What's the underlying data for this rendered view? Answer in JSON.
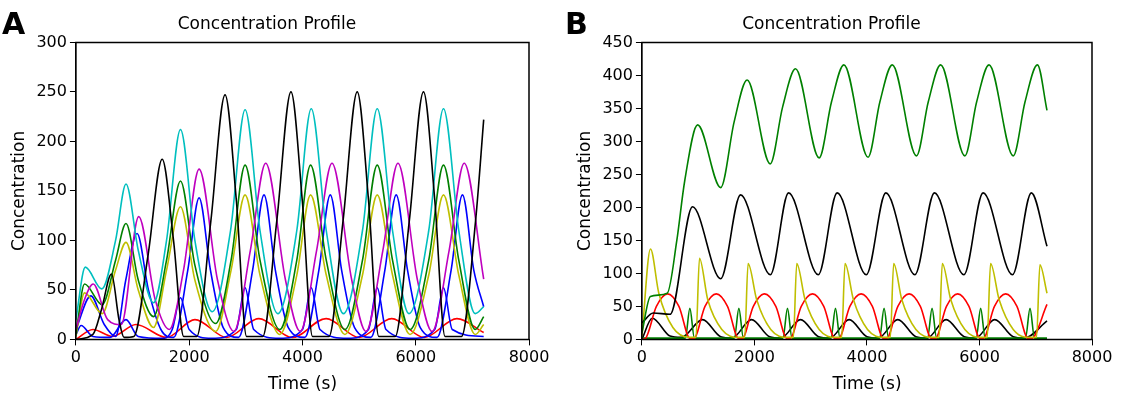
{
  "chart_data": [
    {
      "type": "line",
      "title": "Concentration Profile",
      "xlabel": "Time (s)",
      "ylabel": "Concentration",
      "annotations": [
        "A"
      ],
      "xlim": [
        0,
        8000
      ],
      "xticks": [
        0,
        2000,
        4000,
        6000,
        8000
      ],
      "ylim": [
        0,
        300
      ],
      "yticks": [
        0,
        50,
        100,
        150,
        200,
        250,
        300
      ],
      "series": [
        {
          "color": "#000000",
          "x": [
            0,
            300,
            450,
            628,
            760,
            850,
            1023,
            1273,
            1523,
            1723,
            1903,
            2133,
            2383,
            2633,
            2833,
            3013,
            3297,
            3547,
            3797,
            3997,
            4177,
            4467,
            4717,
            4967,
            5167,
            5347,
            5637,
            5887,
            6137,
            6337,
            6517,
            6807,
            7057,
            7200
          ],
          "values": [
            0,
            5,
            30,
            66,
            20,
            2,
            3,
            85,
            182,
            100,
            3,
            3,
            120,
            247,
            140,
            3,
            3,
            120,
            250,
            140,
            3,
            3,
            120,
            250,
            140,
            3,
            3,
            120,
            250,
            140,
            3,
            3,
            120,
            222
          ]
        },
        {
          "color": "#00bfbf",
          "x": [
            0,
            165,
            457,
            700,
            884,
            1100,
            1371,
            1600,
            1846,
            2100,
            2407,
            2730,
            2987,
            3250,
            3565,
            3900,
            4155,
            4420,
            4723,
            5060,
            5320,
            5590,
            5880,
            6230,
            6490,
            6760,
            7050,
            7200
          ],
          "values": [
            20,
            73,
            51,
            100,
            157,
            90,
            37,
            100,
            212,
            100,
            28,
            110,
            232,
            110,
            26,
            110,
            233,
            110,
            26,
            110,
            233,
            110,
            26,
            110,
            233,
            110,
            26,
            33
          ]
        },
        {
          "color": "#bf00bf",
          "x": [
            0,
            150,
            305,
            560,
            800,
            1109,
            1400,
            1650,
            1900,
            2175,
            2500,
            2790,
            3080,
            3351,
            3700,
            3960,
            4250,
            4521,
            4870,
            5120,
            5420,
            5686,
            6030,
            6290,
            6590,
            6856,
            7200
          ],
          "values": [
            10,
            40,
            56,
            20,
            15,
            124,
            40,
            10,
            70,
            172,
            60,
            8,
            90,
            178,
            60,
            8,
            90,
            178,
            60,
            8,
            90,
            178,
            60,
            8,
            90,
            178,
            61
          ]
        },
        {
          "color": "#008000",
          "x": [
            0,
            152,
            463,
            700,
            884,
            1100,
            1371,
            1600,
            1846,
            2100,
            2468,
            2740,
            2987,
            3250,
            3600,
            3900,
            4143,
            4420,
            4750,
            5060,
            5320,
            5590,
            5900,
            6230,
            6490,
            6760,
            7050,
            7200
          ],
          "values": [
            5,
            56,
            35,
            80,
            117,
            60,
            23,
            80,
            160,
            75,
            16,
            80,
            176,
            80,
            10,
            80,
            176,
            80,
            10,
            80,
            176,
            80,
            10,
            80,
            176,
            80,
            10,
            23
          ]
        },
        {
          "color": "#bfbf00",
          "x": [
            0,
            152,
            463,
            700,
            884,
            1100,
            1371,
            1600,
            1846,
            2100,
            2468,
            2740,
            2987,
            3250,
            3600,
            3900,
            4143,
            4420,
            4750,
            5060,
            5320,
            5590,
            5900,
            6230,
            6490,
            6760,
            7050,
            7200
          ],
          "values": [
            3,
            47,
            26,
            70,
            98,
            50,
            12,
            70,
            134,
            60,
            8,
            70,
            146,
            65,
            5,
            65,
            146,
            65,
            5,
            65,
            146,
            65,
            5,
            65,
            146,
            65,
            5,
            15
          ]
        },
        {
          "color": "#0000ff",
          "x": [
            0,
            262,
            500,
            700,
            880,
            1079,
            1280,
            1500,
            1725,
            1975,
            2175,
            2375,
            2600,
            2870,
            3120,
            3321,
            3521,
            3750,
            4040,
            4290,
            4491,
            4691,
            4920,
            5205,
            5455,
            5655,
            5855,
            6080,
            6375,
            6625,
            6825,
            7025,
            7200
          ],
          "values": [
            10,
            44,
            15,
            3,
            60,
            107,
            50,
            10,
            2,
            70,
            143,
            70,
            12,
            2,
            70,
            146,
            70,
            12,
            2,
            70,
            146,
            70,
            12,
            2,
            70,
            146,
            70,
            12,
            2,
            70,
            146,
            70,
            33
          ]
        },
        {
          "color": "#0000ff",
          "x": [
            0,
            91,
            300,
            600,
            884,
            1100,
            1550,
            1700,
            1846,
            2000,
            2400,
            2830,
            2987,
            3140,
            3600,
            4000,
            4155,
            4310,
            4800,
            5165,
            5320,
            5475,
            5950,
            6335,
            6490,
            6645,
            7200
          ],
          "values": [
            5,
            14,
            3,
            2,
            20,
            3,
            1,
            10,
            42,
            10,
            1,
            10,
            52,
            10,
            1,
            10,
            52,
            10,
            1,
            10,
            52,
            10,
            1,
            10,
            52,
            10,
            3
          ]
        },
        {
          "color": "#ff0000",
          "x": [
            0,
            300,
            650,
            1060,
            1600,
            2102,
            2660,
            3230,
            3820,
            4418,
            5000,
            5576,
            6150,
            6728,
            7200
          ],
          "values": [
            0,
            10,
            3,
            15,
            2,
            20,
            2,
            21,
            2,
            21,
            2,
            21,
            2,
            21,
            7
          ]
        }
      ]
    },
    {
      "type": "line",
      "title": "Concentration Profile",
      "xlabel": "Time (s)",
      "ylabel": "Concentration",
      "annotations": [
        "B"
      ],
      "xlim": [
        0,
        8000
      ],
      "xticks": [
        0,
        2000,
        4000,
        6000,
        8000
      ],
      "ylim": [
        0,
        450
      ],
      "yticks": [
        0,
        50,
        100,
        150,
        200,
        250,
        300,
        350,
        400,
        450
      ],
      "series": [
        {
          "color": "#008000",
          "x": [
            0,
            150,
            450,
            620,
            760,
            990,
            1400,
            1640,
            1870,
            2280,
            2500,
            2730,
            3150,
            3370,
            3590,
            4020,
            4230,
            4450,
            4880,
            5090,
            5310,
            5740,
            5950,
            6170,
            6600,
            6810,
            7030,
            7200
          ],
          "values": [
            10,
            65,
            70,
            150,
            240,
            325,
            230,
            330,
            393,
            266,
            352,
            410,
            275,
            360,
            416,
            276,
            360,
            416,
            278,
            360,
            416,
            278,
            360,
            416,
            278,
            360,
            416,
            347
          ]
        },
        {
          "color": "#000000",
          "x": [
            0,
            200,
            500,
            900,
            1400,
            1753,
            2283,
            2606,
            3135,
            3470,
            3988,
            4335,
            4852,
            5199,
            5723,
            6064,
            6587,
            6922,
            7200
          ],
          "values": [
            25,
            40,
            38,
            201,
            92,
            219,
            98,
            222,
            98,
            222,
            98,
            222,
            98,
            222,
            98,
            222,
            98,
            222,
            141
          ]
        },
        {
          "color": "#bfbf00",
          "x": [
            0,
            152,
            300,
            550,
            850,
            960,
            1023,
            1170,
            1420,
            1720,
            1827,
            1887,
            2040,
            2290,
            2590,
            2692,
            2752,
            2900,
            3150,
            3450,
            3550,
            3610,
            3760,
            4010,
            4310,
            4415,
            4475,
            4620,
            4870,
            5170,
            5280,
            5339,
            5490,
            5740,
            6040,
            6137,
            6197,
            6350,
            6600,
            6900,
            7014,
            7074,
            7200
          ],
          "values": [
            5,
            137,
            70,
            18,
            3,
            3,
            123,
            60,
            15,
            3,
            3,
            115,
            60,
            15,
            3,
            3,
            115,
            60,
            15,
            3,
            3,
            115,
            60,
            15,
            3,
            3,
            115,
            60,
            15,
            3,
            3,
            115,
            60,
            15,
            3,
            3,
            115,
            60,
            15,
            3,
            3,
            113,
            70
          ]
        },
        {
          "color": "#ff0000",
          "x": [
            0,
            57,
            257,
            457,
            657,
            857,
            921,
            1121,
            1321,
            1521,
            1721,
            1780,
            1980,
            2180,
            2380,
            2580,
            2632,
            2832,
            3032,
            3232,
            3432,
            3496,
            3696,
            3896,
            4096,
            4296,
            4349,
            4549,
            4749,
            4949,
            5149,
            5213,
            5413,
            5613,
            5813,
            6013,
            6066,
            6266,
            6466,
            6666,
            6866,
            6920,
            7200
          ],
          "values": [
            0,
            1,
            50,
            69,
            50,
            1,
            1,
            50,
            69,
            50,
            1,
            1,
            50,
            69,
            50,
            1,
            1,
            50,
            69,
            50,
            1,
            1,
            50,
            69,
            50,
            1,
            1,
            50,
            69,
            50,
            1,
            1,
            50,
            69,
            50,
            1,
            1,
            50,
            69,
            50,
            1,
            1,
            53
          ]
        },
        {
          "color": "#008000",
          "x": [
            0,
            772,
            852,
            932,
            1643,
            1723,
            1803,
            2507,
            2587,
            2667,
            3360,
            3440,
            3520,
            4224,
            4304,
            4384,
            5077,
            5157,
            5237,
            5941,
            6021,
            6101,
            6818,
            6898,
            6978,
            7200
          ],
          "values": [
            2,
            2,
            47,
            2,
            2,
            47,
            2,
            2,
            47,
            2,
            2,
            47,
            2,
            2,
            47,
            2,
            2,
            47,
            2,
            2,
            47,
            2,
            2,
            47,
            2,
            2
          ]
        },
        {
          "color": "#000000",
          "x": [
            0,
            183,
            500,
            700,
            1078,
            1400,
            1600,
            1948,
            2270,
            2470,
            2819,
            3140,
            3340,
            3683,
            4000,
            4200,
            4548,
            4870,
            5070,
            5406,
            5730,
            5930,
            6271,
            6600,
            6800,
            7200
          ],
          "values": [
            0,
            32,
            5,
            3,
            30,
            4,
            2,
            30,
            4,
            2,
            30,
            4,
            2,
            30,
            4,
            2,
            30,
            4,
            2,
            30,
            4,
            2,
            30,
            4,
            2,
            28
          ]
        }
      ]
    }
  ]
}
